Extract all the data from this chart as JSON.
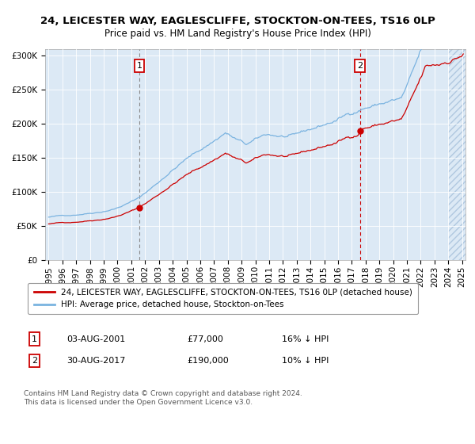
{
  "title": "24, LEICESTER WAY, EAGLESCLIFFE, STOCKTON-ON-TEES, TS16 0LP",
  "subtitle": "Price paid vs. HM Land Registry's House Price Index (HPI)",
  "ylim": [
    0,
    310000
  ],
  "yticks": [
    0,
    50000,
    100000,
    150000,
    200000,
    250000,
    300000
  ],
  "ytick_labels": [
    "£0",
    "£50K",
    "£100K",
    "£150K",
    "£200K",
    "£250K",
    "£300K"
  ],
  "bg_color": "#dce9f5",
  "hpi_color": "#7ab3e0",
  "price_color": "#cc0000",
  "sale1_date_label": "03-AUG-2001",
  "sale1_price": 77000,
  "sale1_price_label": "£77,000",
  "sale1_hpi_label": "16% ↓ HPI",
  "sale2_date_label": "30-AUG-2017",
  "sale2_price": 190000,
  "sale2_price_label": "£190,000",
  "sale2_hpi_label": "10% ↓ HPI",
  "legend_property": "24, LEICESTER WAY, EAGLESCLIFFE, STOCKTON-ON-TEES, TS16 0LP (detached house)",
  "legend_hpi": "HPI: Average price, detached house, Stockton-on-Tees",
  "footnote": "Contains HM Land Registry data © Crown copyright and database right 2024.\nThis data is licensed under the Open Government Licence v3.0.",
  "title_fontsize": 9.5,
  "subtitle_fontsize": 8.5,
  "tick_fontsize": 7.5,
  "legend_fontsize": 7.5,
  "table_fontsize": 8.0,
  "footnote_fontsize": 6.5
}
